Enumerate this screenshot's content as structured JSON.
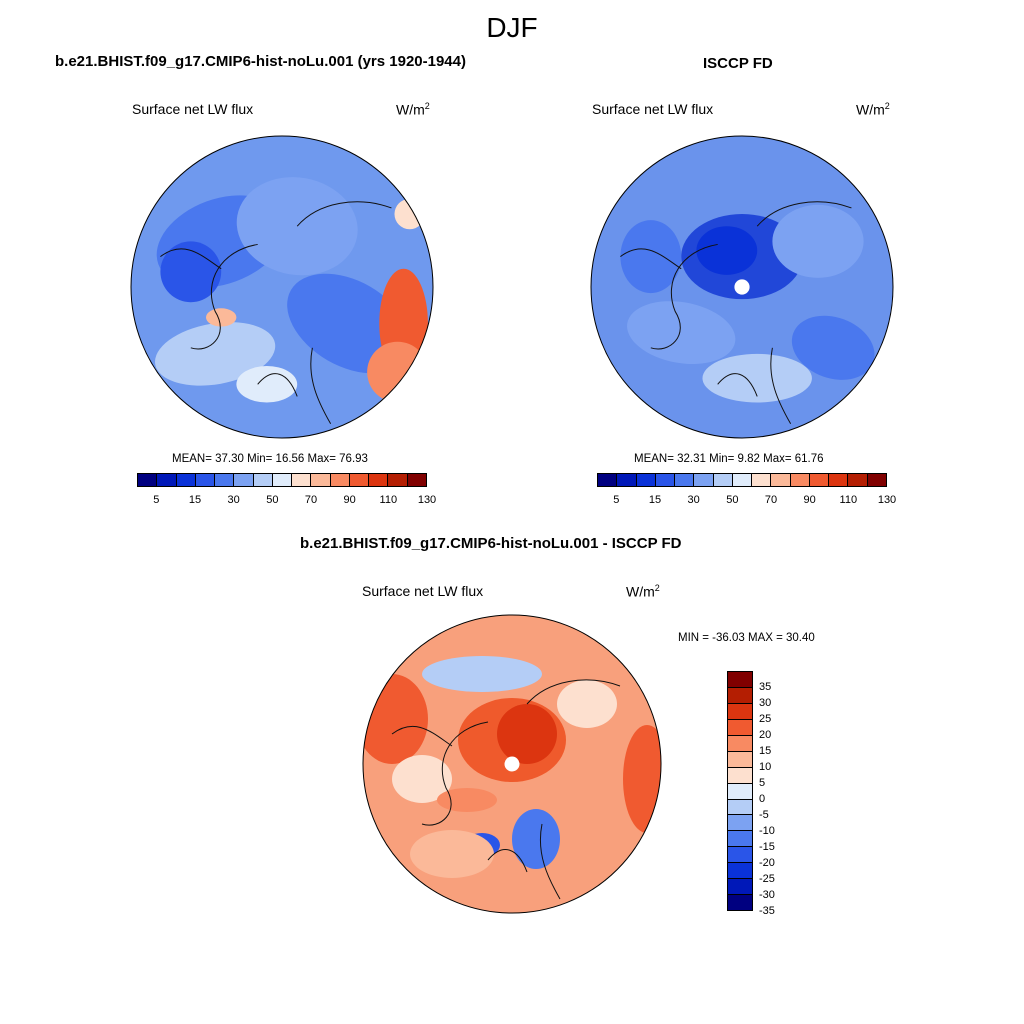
{
  "figure": {
    "title": "DJF"
  },
  "panels": [
    {
      "title": "b.e21.BHIST.f09_g17.CMIP6-hist-noLu.001 (yrs 1920-1944)",
      "field_label": "Surface net LW flux",
      "units_base": "W/m",
      "units_exp": "2",
      "stats": "MEAN=  37.30  Min=  16.56  Max=  76.93",
      "pole_hole": false
    },
    {
      "title": "ISCCP FD",
      "field_label": "Surface net LW flux",
      "units_base": "W/m",
      "units_exp": "2",
      "stats": "MEAN=  32.31  Min=   9.82  Max=  61.76",
      "pole_hole": true
    },
    {
      "title": "b.e21.BHIST.f09_g17.CMIP6-hist-noLu.001 - ISCCP FD",
      "field_label": "Surface net LW flux",
      "units_base": "W/m",
      "units_exp": "2",
      "stats": "MIN = -36.03 MAX =  30.40",
      "pole_hole": true
    }
  ],
  "colorbars": {
    "absolute": {
      "colors": [
        "#000080",
        "#0018b8",
        "#0a32d8",
        "#2a55e8",
        "#4a78ee",
        "#7ca2f2",
        "#b4cdf6",
        "#e0ecfb",
        "#fde0cf",
        "#fbb999",
        "#f88a62",
        "#f05a30",
        "#dc3510",
        "#b41e02",
        "#800000"
      ],
      "tick_labels": [
        "5",
        "15",
        "30",
        "50",
        "70",
        "90",
        "110",
        "130"
      ]
    },
    "difference": {
      "colors": [
        "#800000",
        "#b41e02",
        "#dc3510",
        "#f05a30",
        "#f88a62",
        "#fbb999",
        "#fde0cf",
        "#e0ecfb",
        "#b4cdf6",
        "#7ca2f2",
        "#4a78ee",
        "#2a55e8",
        "#0a32d8",
        "#0018b8",
        "#000080"
      ],
      "tick_labels": [
        "35",
        "30",
        "25",
        "20",
        "15",
        "10",
        "5",
        "0",
        "-5",
        "-10",
        "-15",
        "-20",
        "-25",
        "-30",
        "-35"
      ]
    }
  },
  "colors": {
    "panel1_base": "#6f99ee",
    "panel2_base": "#6a93ec",
    "panel3_base": "#f8a07c",
    "panel2_core": "#2147d8",
    "panel3_core": "#ef5a2c"
  }
}
